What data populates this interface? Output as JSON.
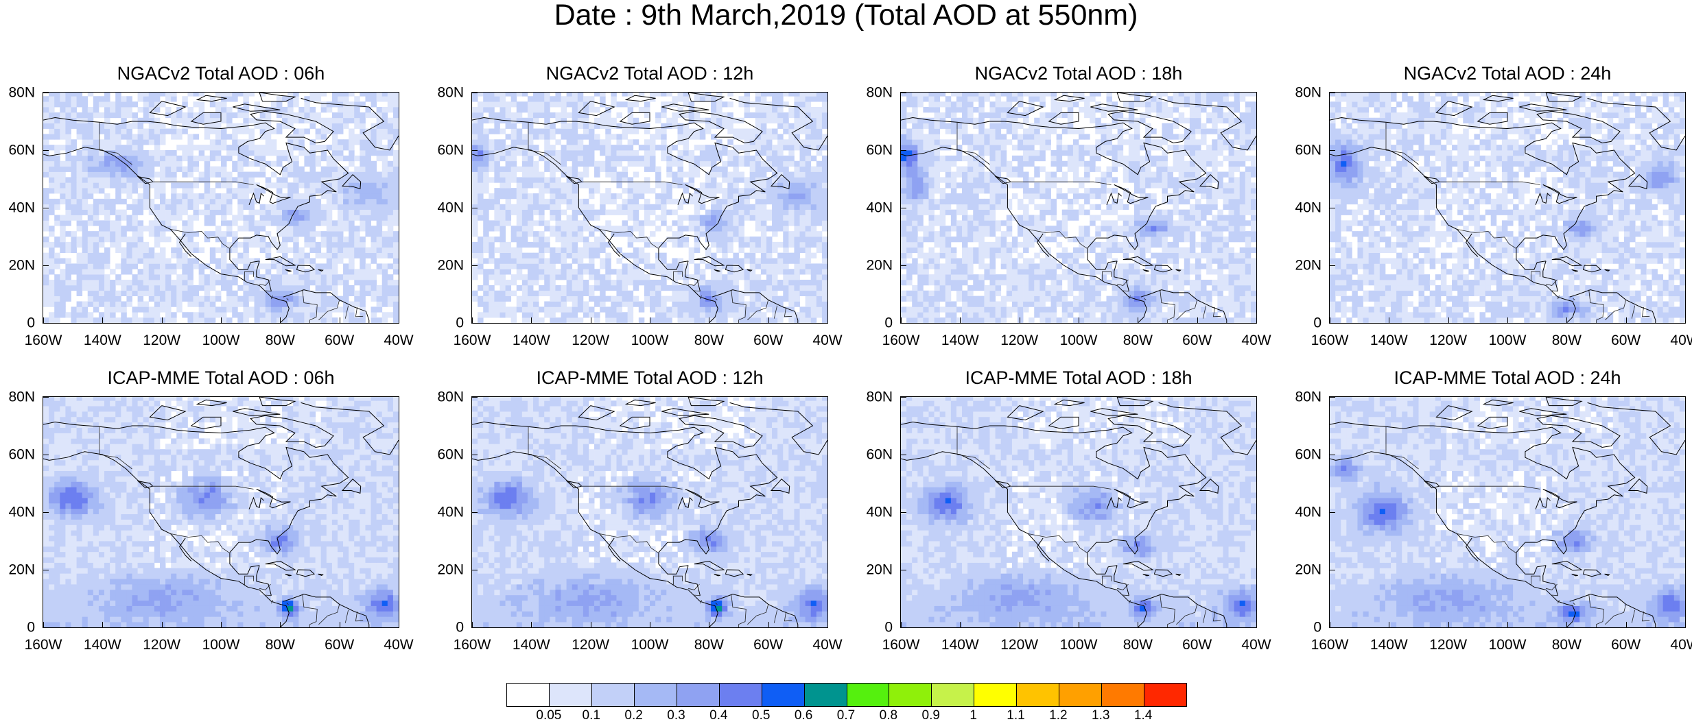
{
  "title": "Date : 9th March,2019 (Total AOD at 550nm)",
  "panels": [
    {
      "title": "NGACv2 Total AOD : 06h",
      "model": "NGACv2",
      "hour": "06h",
      "plumes": [
        [
          -135,
          55,
          0.25,
          9,
          4
        ],
        [
          -75,
          37,
          0.25,
          6,
          3
        ],
        [
          -80,
          8,
          0.3,
          5,
          4
        ],
        [
          -50,
          45,
          0.2,
          8,
          5
        ]
      ]
    },
    {
      "title": "NGACv2 Total AOD : 12h",
      "model": "NGACv2",
      "hour": "12h",
      "plumes": [
        [
          -158,
          58,
          0.3,
          4,
          4
        ],
        [
          -78,
          35,
          0.25,
          5,
          4
        ],
        [
          -80,
          8,
          0.3,
          5,
          4
        ],
        [
          -50,
          45,
          0.2,
          8,
          5
        ]
      ]
    },
    {
      "title": "NGACv2 Total AOD : 18h",
      "model": "NGACv2",
      "hour": "18h",
      "plumes": [
        [
          -158,
          58,
          0.45,
          4,
          5
        ],
        [
          -155,
          48,
          0.3,
          4,
          6
        ],
        [
          -75,
          33,
          0.3,
          5,
          3
        ],
        [
          -80,
          8,
          0.3,
          5,
          4
        ]
      ]
    },
    {
      "title": "NGACv2 Total AOD : 24h",
      "model": "NGACv2",
      "hour": "24h",
      "plumes": [
        [
          -155,
          55,
          0.4,
          5,
          7
        ],
        [
          -75,
          33,
          0.3,
          6,
          3
        ],
        [
          -80,
          5,
          0.3,
          6,
          3
        ],
        [
          -48,
          50,
          0.25,
          6,
          5
        ]
      ]
    },
    {
      "title": "ICAP-MME Total AOD : 06h",
      "model": "ICAP-MME",
      "hour": "06h",
      "plumes": [
        [
          -150,
          45,
          0.4,
          8,
          6
        ],
        [
          -105,
          45,
          0.35,
          8,
          6
        ],
        [
          -80,
          30,
          0.35,
          6,
          4
        ],
        [
          -77,
          7,
          0.55,
          3,
          3
        ],
        [
          -45,
          8,
          0.35,
          6,
          5
        ],
        [
          -120,
          10,
          0.2,
          20,
          8
        ]
      ]
    },
    {
      "title": "ICAP-MME Total AOD : 12h",
      "model": "ICAP-MME",
      "hour": "12h",
      "plumes": [
        [
          -148,
          45,
          0.4,
          8,
          6
        ],
        [
          -100,
          45,
          0.35,
          8,
          6
        ],
        [
          -80,
          30,
          0.35,
          6,
          4
        ],
        [
          -77,
          7,
          0.55,
          3,
          3
        ],
        [
          -45,
          8,
          0.35,
          6,
          5
        ],
        [
          -120,
          10,
          0.2,
          20,
          8
        ]
      ]
    },
    {
      "title": "ICAP-MME Total AOD : 18h",
      "model": "ICAP-MME",
      "hour": "18h",
      "plumes": [
        [
          -145,
          43,
          0.4,
          8,
          6
        ],
        [
          -95,
          42,
          0.3,
          8,
          6
        ],
        [
          -80,
          28,
          0.3,
          6,
          4
        ],
        [
          -78,
          7,
          0.4,
          4,
          3
        ],
        [
          -45,
          8,
          0.35,
          6,
          5
        ],
        [
          -120,
          10,
          0.2,
          20,
          8
        ]
      ]
    },
    {
      "title": "ICAP-MME Total AOD : 24h",
      "model": "ICAP-MME",
      "hour": "24h",
      "plumes": [
        [
          -142,
          40,
          0.4,
          8,
          7
        ],
        [
          -155,
          55,
          0.35,
          4,
          4
        ],
        [
          -78,
          30,
          0.3,
          6,
          4
        ],
        [
          -78,
          5,
          0.4,
          5,
          3
        ],
        [
          -45,
          8,
          0.35,
          6,
          5
        ],
        [
          -120,
          10,
          0.2,
          20,
          8
        ]
      ]
    }
  ],
  "axes": {
    "lat_ticks": [
      "80N",
      "60N",
      "40N",
      "20N",
      "0"
    ],
    "lat_values": [
      80,
      60,
      40,
      20,
      0
    ],
    "lon_ticks": [
      "160W",
      "140W",
      "120W",
      "100W",
      "80W",
      "60W",
      "40W"
    ],
    "lon_values": [
      -160,
      -140,
      -120,
      -100,
      -80,
      -60,
      -40
    ],
    "lon_range": [
      -160,
      -40
    ],
    "lat_range": [
      0,
      80
    ]
  },
  "colorbar": {
    "labels": [
      "0.05",
      "0.1",
      "0.2",
      "0.3",
      "0.4",
      "0.5",
      "0.6",
      "0.7",
      "0.8",
      "0.9",
      "1",
      "1.1",
      "1.2",
      "1.3",
      "1.4"
    ],
    "levels": [
      0.05,
      0.1,
      0.2,
      0.3,
      0.4,
      0.5,
      0.6,
      0.7,
      0.8,
      0.9,
      1.0,
      1.1,
      1.2,
      1.3,
      1.4
    ],
    "colors": [
      "#ffffff",
      "#dde5fb",
      "#c2d0f8",
      "#a5b9f5",
      "#8fa2f2",
      "#6c7ff0",
      "#0f5ef5",
      "#00948f",
      "#55f00e",
      "#8ff00a",
      "#c6f24a",
      "#ffff00",
      "#ffc300",
      "#ffa000",
      "#ff7a00",
      "#ff2800"
    ]
  }
}
